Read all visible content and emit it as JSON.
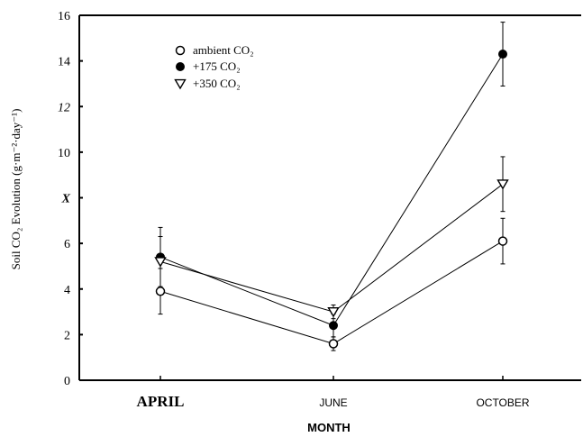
{
  "chart_data": {
    "type": "line",
    "xlabel": "MONTH",
    "ylabel": "Soil CO₂ Evolution (g·m⁻²·day⁻¹)",
    "categories": [
      "APRIL",
      "JUNE",
      "OCTOBER"
    ],
    "ylim": [
      0,
      16
    ],
    "yticks": [
      {
        "value": 0,
        "label": "0"
      },
      {
        "value": 2,
        "label": "2"
      },
      {
        "value": 4,
        "label": "4"
      },
      {
        "value": 6,
        "label": "6"
      },
      {
        "value": 8,
        "label": "X"
      },
      {
        "value": 10,
        "label": "10"
      },
      {
        "value": 12,
        "label": "12"
      },
      {
        "value": 14,
        "label": "14"
      },
      {
        "value": 16,
        "label": "16"
      }
    ],
    "legend_position": "top-left",
    "grid": false,
    "series": [
      {
        "name": "ambient CO₂",
        "marker": "open-circle",
        "values": [
          3.9,
          1.6,
          6.1
        ],
        "errors": [
          1.0,
          0.3,
          1.0
        ]
      },
      {
        "name": "+175 CO₂",
        "marker": "filled-circle",
        "values": [
          5.4,
          2.4,
          14.3
        ],
        "errors": [
          1.3,
          0.5,
          1.4
        ]
      },
      {
        "name": "+350 CO₂",
        "marker": "open-triangle",
        "values": [
          5.2,
          3.0,
          8.6
        ],
        "errors": [
          1.1,
          0.3,
          1.2
        ]
      }
    ]
  }
}
